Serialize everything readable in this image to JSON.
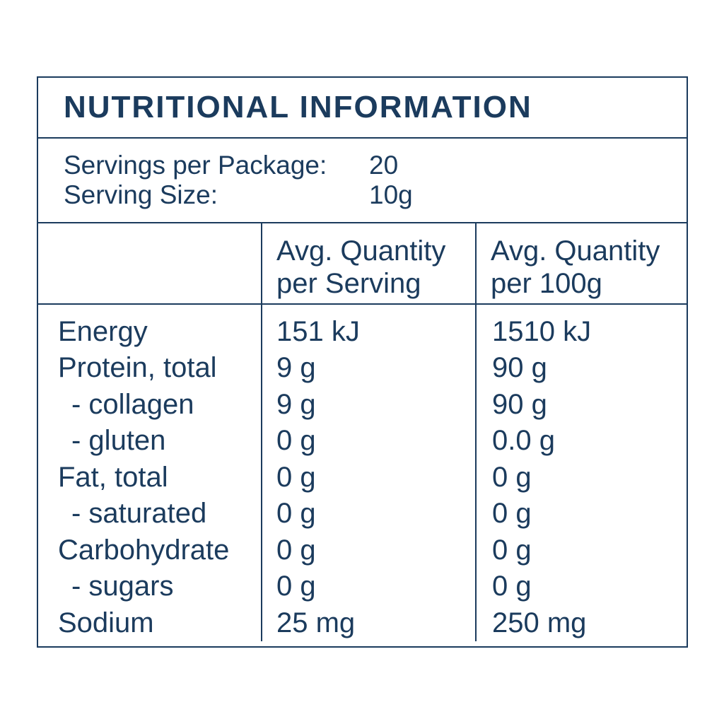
{
  "colors": {
    "ink": "#1b3b5d",
    "background": "#ffffff"
  },
  "panel": {
    "title": "NUTRITIONAL INFORMATION",
    "servings": {
      "rows": [
        {
          "label": "Servings per Package:",
          "value": "20"
        },
        {
          "label": "Serving Size:",
          "value": "10g"
        }
      ]
    },
    "table": {
      "headers": [
        {
          "line1": "",
          "line2": ""
        },
        {
          "line1": "Avg. Quantity",
          "line2": "per Serving"
        },
        {
          "line1": "Avg. Quantity",
          "line2": "per 100g"
        }
      ],
      "rows": [
        {
          "nutrient": "Energy",
          "per_serving": "151 kJ",
          "per_100g": "1510 kJ"
        },
        {
          "nutrient": "Protein, total",
          "per_serving": "9 g",
          "per_100g": "90 g"
        },
        {
          "nutrient": "- collagen",
          "per_serving": "9 g",
          "per_100g": "90 g"
        },
        {
          "nutrient": "- gluten",
          "per_serving": "0 g",
          "per_100g": "0.0 g"
        },
        {
          "nutrient": "Fat, total",
          "per_serving": "0 g",
          "per_100g": "0 g"
        },
        {
          "nutrient": "- saturated",
          "per_serving": "0 g",
          "per_100g": "0 g"
        },
        {
          "nutrient": "Carbohydrate",
          "per_serving": "0 g",
          "per_100g": "0 g"
        },
        {
          "nutrient": "- sugars",
          "per_serving": "0 g",
          "per_100g": "0 g"
        },
        {
          "nutrient": "Sodium",
          "per_serving": "25 mg",
          "per_100g": "250 mg"
        }
      ]
    }
  }
}
